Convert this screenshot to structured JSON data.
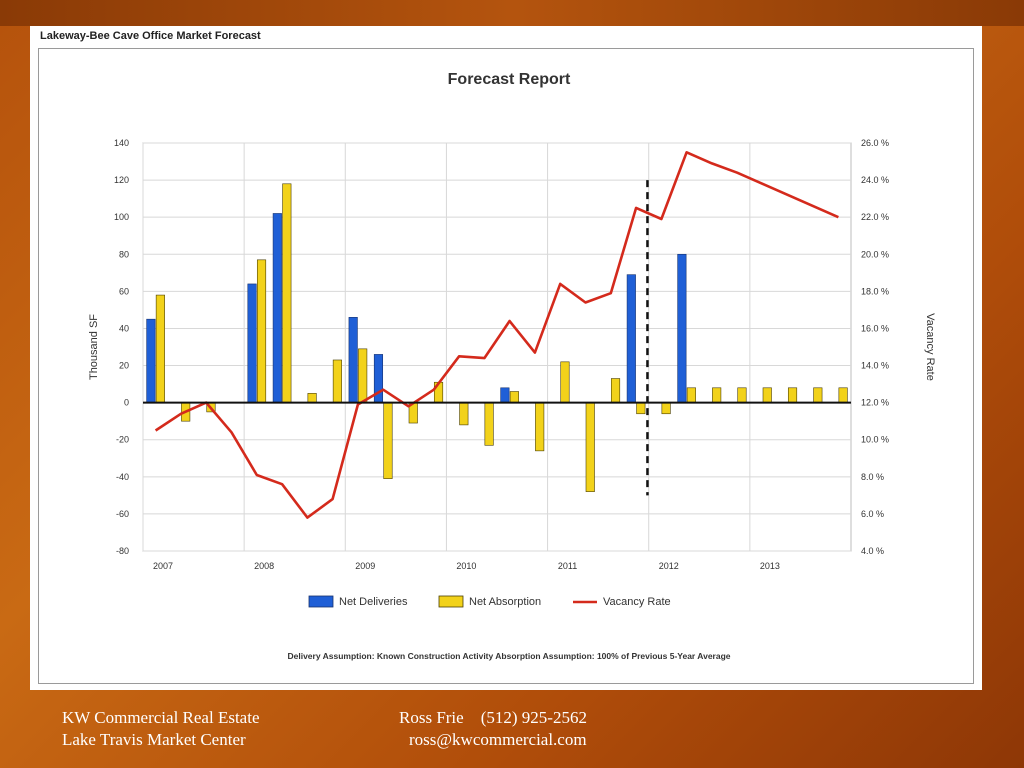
{
  "panel_title": "Lakeway-Bee Cave Office Market Forecast",
  "footer": {
    "left_line1": "KW Commercial Real Estate",
    "left_line2": "Lake Travis Market Center",
    "contact_name": "Ross Frie",
    "contact_phone": "(512) 925-2562",
    "contact_email": "ross@kwcommercial.com"
  },
  "colors": {
    "deliveries": "#1f5fd6",
    "absorption": "#f2d21a",
    "vacancy": "#d42a1c",
    "grid": "#d8d8d8"
  },
  "chart_data": {
    "type": "bar",
    "title": "Forecast Report",
    "ylabel": "Thousand SF",
    "y2label": "Vacancy Rate",
    "ylim": [
      -80,
      140
    ],
    "y2lim": [
      4.0,
      26.0
    ],
    "yticks": [
      "140",
      "120",
      "100",
      "80",
      "60",
      "40",
      "20",
      "0",
      "-20",
      "-40",
      "-60",
      "-80"
    ],
    "y2ticks": [
      "26.0 %",
      "24.0 %",
      "22.0 %",
      "20.0 %",
      "18.0 %",
      "16.0 %",
      "14.0 %",
      "12.0 %",
      "10.0 %",
      "8.0 %",
      "6.0 %",
      "4.0 %"
    ],
    "year_labels": [
      "2007",
      "2008",
      "2009",
      "2010",
      "2011",
      "2012",
      "2013"
    ],
    "quarters_per_year": 4,
    "forecast_start_quarter": 20,
    "legend": [
      "Net Deliveries",
      "Net Absorption",
      "Vacancy Rate"
    ],
    "legend_position": "bottom",
    "grid": true,
    "series": [
      {
        "name": "Net Deliveries",
        "type": "bar",
        "values": [
          45,
          0,
          0,
          0,
          64,
          102,
          0,
          0,
          46,
          26,
          0,
          0,
          0,
          0,
          8,
          0,
          0,
          0,
          0,
          69,
          0,
          80,
          0,
          0,
          0,
          0,
          0,
          0
        ]
      },
      {
        "name": "Net Absorption",
        "type": "bar",
        "values": [
          58,
          -10,
          -5,
          0,
          77,
          118,
          5,
          23,
          29,
          -41,
          -11,
          11,
          -12,
          -23,
          6,
          -26,
          22,
          -48,
          13,
          -6,
          -6,
          8,
          8,
          8,
          8,
          8,
          8,
          8
        ]
      },
      {
        "name": "Vacancy Rate",
        "type": "line",
        "values": [
          10.5,
          11.4,
          12.0,
          10.4,
          8.1,
          7.6,
          5.8,
          6.8,
          11.9,
          12.7,
          11.8,
          12.7,
          14.5,
          14.4,
          16.4,
          14.7,
          18.4,
          17.4,
          17.9,
          22.5,
          21.9,
          25.5,
          24.9,
          24.4,
          23.8,
          23.2,
          22.6,
          22.0
        ]
      }
    ],
    "footnote": "Delivery Assumption: Known Construction Activity   Absorption Assumption: 100% of Previous 5-Year Average"
  }
}
